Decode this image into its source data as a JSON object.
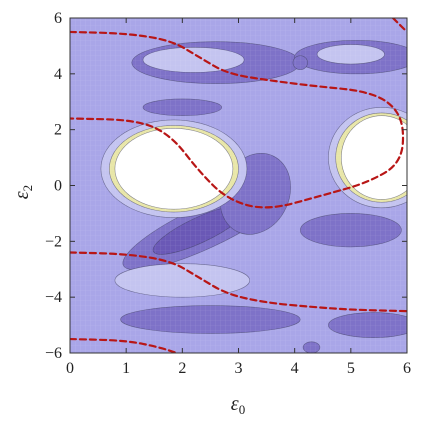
{
  "chart_data": {
    "type": "contour",
    "title": "",
    "xlabel": "ε",
    "xlabel_sub": "0",
    "ylabel": "ε",
    "ylabel_sub": "2",
    "xlim": [
      0,
      6
    ],
    "ylim": [
      -6,
      6
    ],
    "xticks": [
      "0",
      "1",
      "2",
      "3",
      "4",
      "5",
      "6"
    ],
    "yticks": [
      "6",
      "4",
      "2",
      "0",
      "−2",
      "−4",
      "−6"
    ],
    "ytick_values": [
      6,
      4,
      2,
      0,
      -2,
      -4,
      -6
    ],
    "grid": true,
    "colors": {
      "background": "#a9a6e8",
      "dark_region": "#7e72c8",
      "deep_region": "#6a58b6",
      "light_region": "#c4c4f0",
      "peak_region": "#ffffff",
      "inner_contour": "#e8e6a8",
      "contour_line": "#3b3b5a",
      "dashed_curve": "#b81616"
    },
    "dashed_curves": [
      {
        "points": [
          [
            0,
            5.5
          ],
          [
            1,
            5.45
          ],
          [
            1.8,
            5.2
          ],
          [
            2.3,
            4.6
          ],
          [
            2.8,
            4.0
          ],
          [
            3.6,
            3.75
          ],
          [
            4.4,
            3.55
          ],
          [
            5.2,
            3.4
          ],
          [
            5.7,
            3.0
          ],
          [
            5.95,
            2.2
          ],
          [
            5.9,
            0.8
          ],
          [
            5.3,
            0.1
          ],
          [
            4.5,
            -0.35
          ],
          [
            3.5,
            -0.9
          ],
          [
            2.8,
            -0.5
          ],
          [
            2.3,
            0.5
          ],
          [
            1.8,
            1.8
          ],
          [
            1.2,
            2.35
          ],
          [
            0,
            2.4
          ]
        ]
      },
      {
        "points": [
          [
            0,
            -2.4
          ],
          [
            1,
            -2.45
          ],
          [
            1.8,
            -2.7
          ],
          [
            2.3,
            -3.3
          ],
          [
            2.8,
            -3.9
          ],
          [
            3.5,
            -4.2
          ],
          [
            4.3,
            -4.35
          ],
          [
            5.0,
            -4.45
          ],
          [
            6,
            -4.5
          ]
        ]
      },
      {
        "points": [
          [
            0,
            -5.5
          ],
          [
            1,
            -5.55
          ],
          [
            1.6,
            -5.8
          ],
          [
            1.9,
            -6.0
          ]
        ]
      },
      {
        "points": [
          [
            5.75,
            6.0
          ],
          [
            6,
            5.5
          ]
        ]
      }
    ]
  }
}
